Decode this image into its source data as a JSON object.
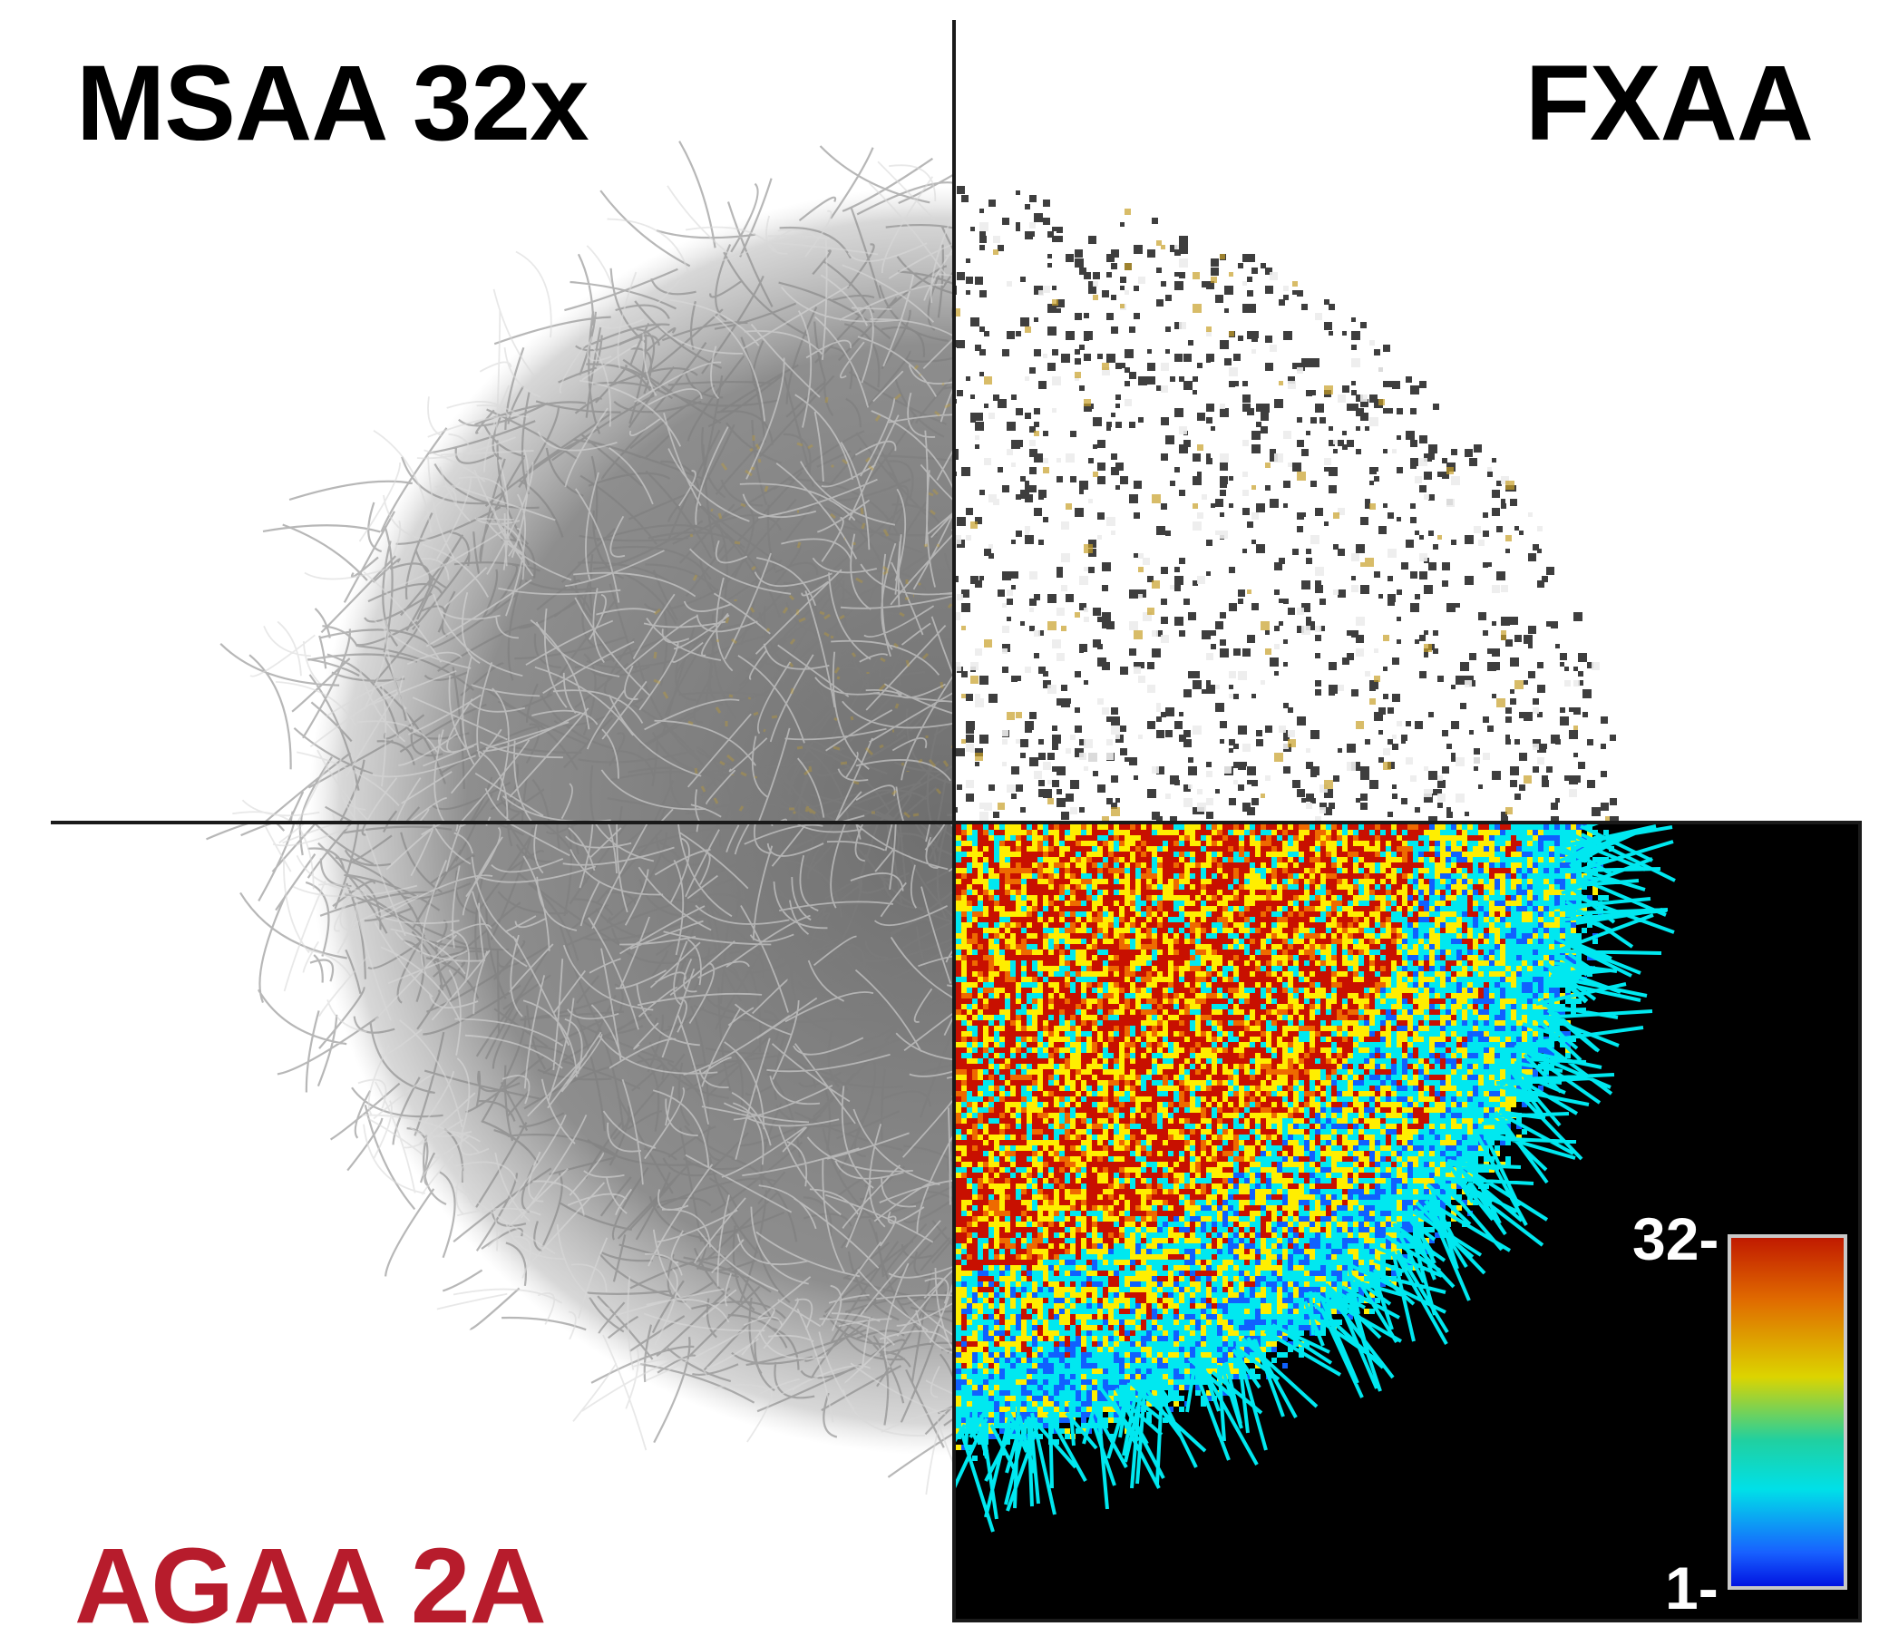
{
  "labels": {
    "top_left": "MSAA 32x",
    "top_right": "FXAA",
    "bottom_left": "AGAA 2A"
  },
  "colorbar": {
    "max_label": "32-",
    "min_label": "1-",
    "stops": [
      "#c01800",
      "#e06a00",
      "#dcd400",
      "#20d0a0",
      "#00e0e8",
      "#1860ff",
      "#0010e0"
    ]
  },
  "colors": {
    "label_dark": "#000000",
    "label_accent": "#b71c2c",
    "divider": "#1a1a1a",
    "panel_bg": "#000000",
    "hair_grey": "#7c7c7c",
    "hair_light": "#d8d8d8",
    "fxaa_dark": "#1c1c1c",
    "highlight": "#c8a028",
    "heat_red": "#c81000",
    "heat_yellow": "#ffee00",
    "heat_cyan": "#00e8f0",
    "heat_blue": "#1060ff"
  }
}
